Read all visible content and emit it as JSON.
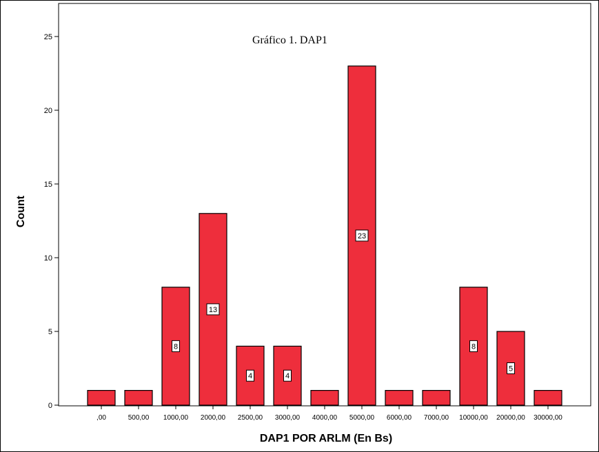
{
  "chart_data": {
    "type": "bar",
    "title": "Gráfico 1. DAP1",
    "xlabel": "DAP1 POR ARLM (En Bs)",
    "ylabel": "Count",
    "ylim": [
      0,
      25
    ],
    "yticks": [
      "0",
      "5",
      "10",
      "15",
      "20",
      "25"
    ],
    "categories": [
      ",00",
      "500,00",
      "1000,00",
      "2000,00",
      "2500,00",
      "3000,00",
      "4000,00",
      "5000,00",
      "6000,00",
      "7000,00",
      "10000,00",
      "20000,00",
      "30000,00"
    ],
    "values": [
      1,
      1,
      8,
      13,
      4,
      4,
      1,
      23,
      1,
      1,
      8,
      5,
      1
    ],
    "data_labels": [
      "",
      "",
      "8",
      "13",
      "4",
      "4",
      "",
      "23",
      "",
      "",
      "8",
      "5",
      ""
    ],
    "bar_color": "#ee2e3c",
    "grid": false,
    "legend": "none"
  }
}
